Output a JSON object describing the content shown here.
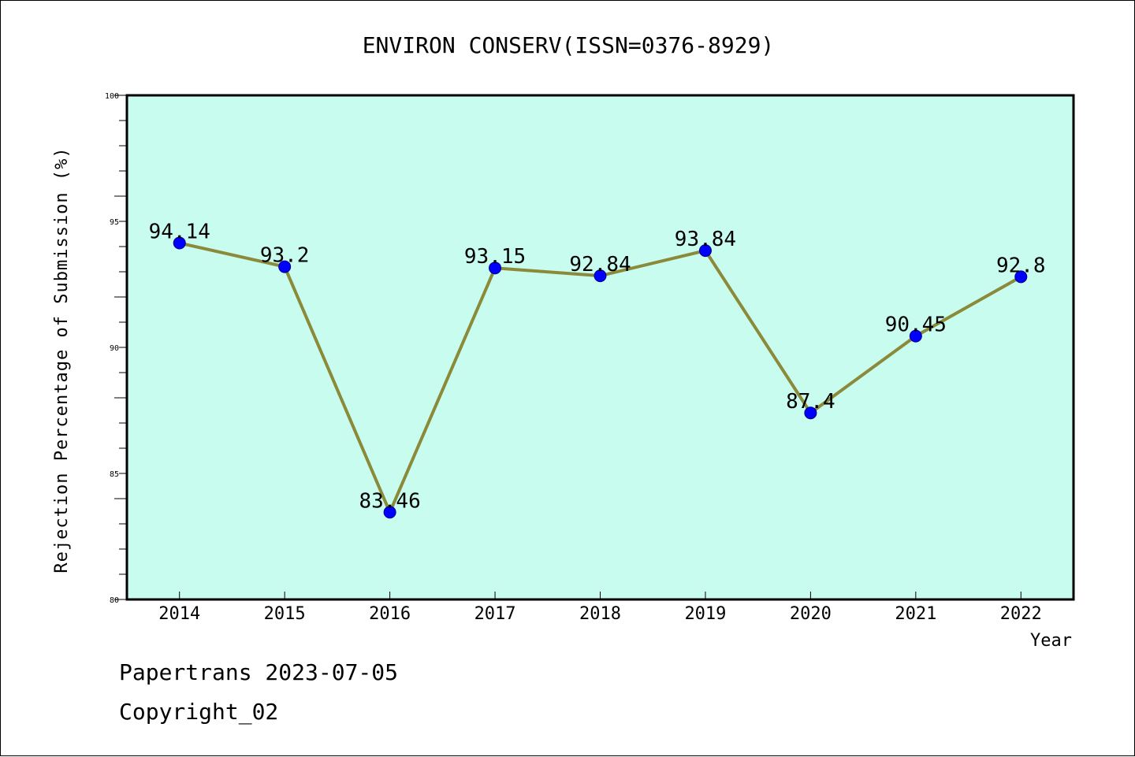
{
  "chart_data": {
    "type": "line",
    "title": "ENVIRON CONSERV(ISSN=0376-8929)",
    "xlabel": "Year",
    "ylabel": "Rejection Percentage of Submission (%)",
    "categories": [
      "2014",
      "2015",
      "2016",
      "2017",
      "2018",
      "2019",
      "2020",
      "2021",
      "2022"
    ],
    "values": [
      94.14,
      93.2,
      83.46,
      93.15,
      92.84,
      93.84,
      87.4,
      90.45,
      92.8
    ],
    "value_labels": [
      "94.14",
      "93.2",
      "83.46",
      "93.15",
      "92.84",
      "93.84",
      "87.4",
      "90.45",
      "92.8"
    ],
    "ylim": [
      80,
      100
    ],
    "yticks": [
      "80",
      "85",
      "90",
      "95",
      "100"
    ],
    "grid": false,
    "colors": {
      "plot_background": "#c8fcee",
      "line": "#8b8a3a",
      "marker": "#0000ff"
    }
  },
  "footer": {
    "line1": "Papertrans 2023-07-05",
    "line2": "Copyright_02"
  }
}
